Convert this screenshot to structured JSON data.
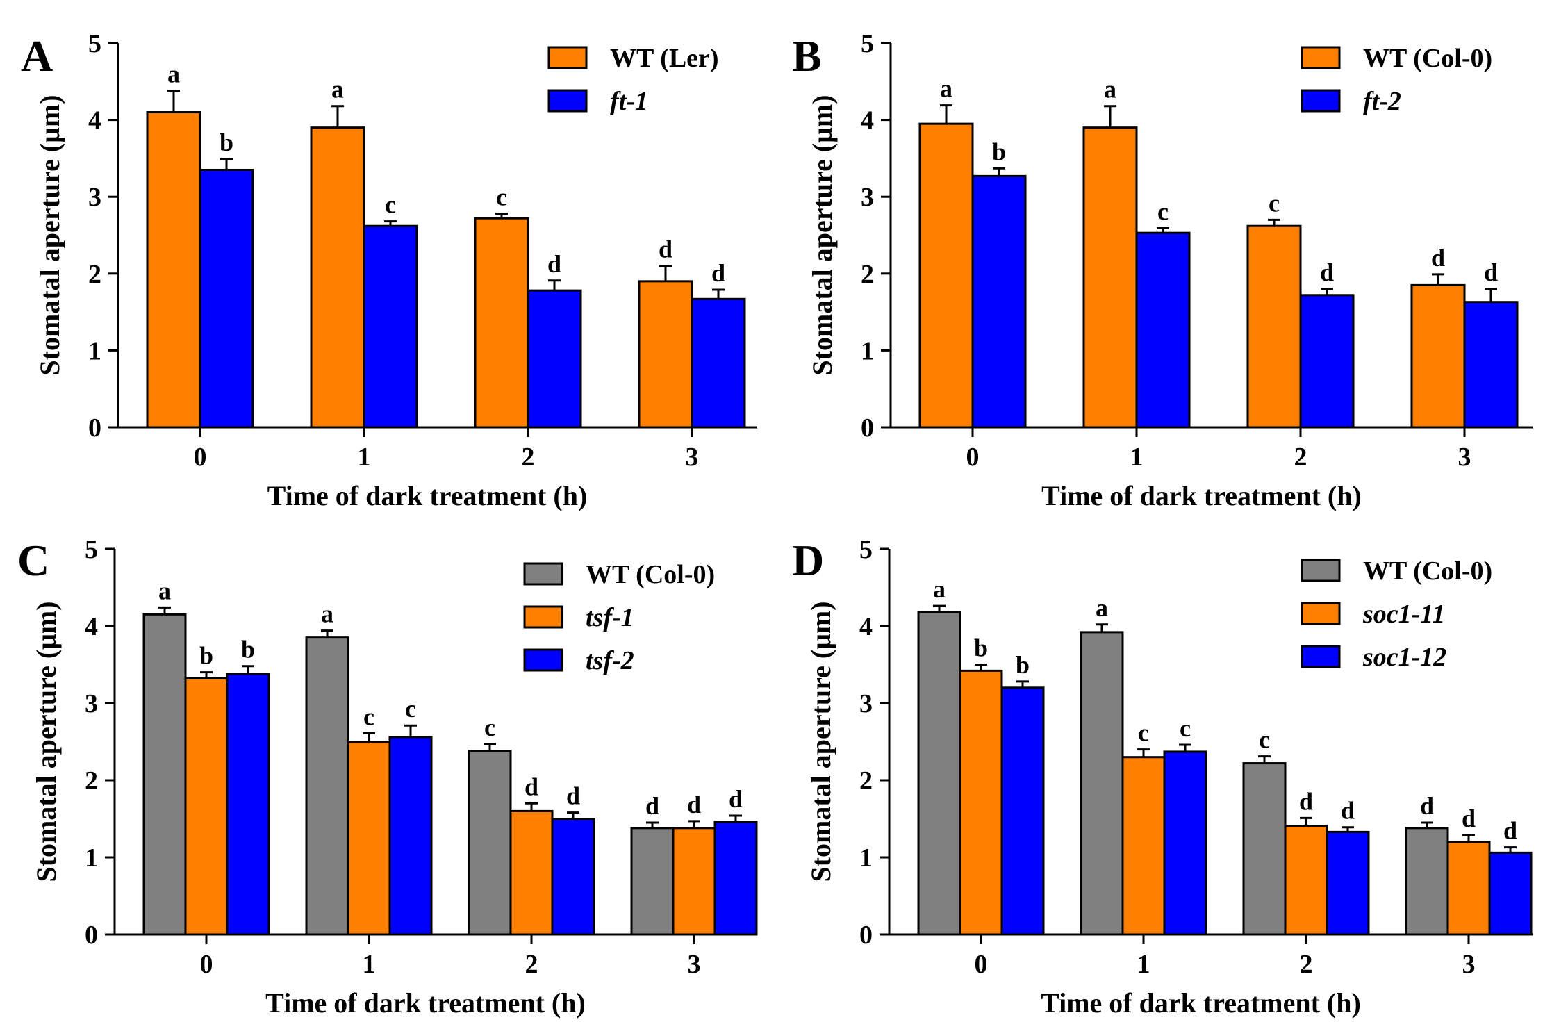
{
  "chart_data": [
    {
      "type": "bar",
      "panel": "A",
      "xlabel": "Time of dark treatment (h)",
      "ylabel": "Stomatal aperture (μm)",
      "ylim": [
        0,
        5
      ],
      "yticks": [
        "0",
        "1",
        "2",
        "3",
        "4",
        "5"
      ],
      "categories": [
        "0",
        "1",
        "2",
        "3"
      ],
      "legend_position": "top-right",
      "series": [
        {
          "name": "WT (Ler)",
          "italic": false,
          "color": "#ff7f00",
          "values": [
            4.1,
            3.9,
            2.72,
            1.9
          ],
          "errors": [
            0.28,
            0.28,
            0.06,
            0.2
          ],
          "sig": [
            "a",
            "a",
            "c",
            "d"
          ]
        },
        {
          "name": "ft-1",
          "italic": true,
          "color": "#0000ff",
          "values": [
            3.35,
            2.62,
            1.78,
            1.67
          ],
          "errors": [
            0.14,
            0.06,
            0.13,
            0.12
          ],
          "sig": [
            "b",
            "c",
            "d",
            "d"
          ]
        }
      ]
    },
    {
      "type": "bar",
      "panel": "B",
      "xlabel": "Time of dark treatment (h)",
      "ylabel": "Stomatal aperture (μm)",
      "ylim": [
        0,
        5
      ],
      "yticks": [
        "0",
        "1",
        "2",
        "3",
        "4",
        "5"
      ],
      "categories": [
        "0",
        "1",
        "2",
        "3"
      ],
      "legend_position": "top-right",
      "series": [
        {
          "name": "WT (Col-0)",
          "italic": false,
          "color": "#ff7f00",
          "values": [
            3.95,
            3.9,
            2.62,
            1.85
          ],
          "errors": [
            0.24,
            0.28,
            0.08,
            0.14
          ],
          "sig": [
            "a",
            "a",
            "c",
            "d"
          ]
        },
        {
          "name": "ft-2",
          "italic": true,
          "color": "#0000ff",
          "values": [
            3.27,
            2.53,
            1.72,
            1.63
          ],
          "errors": [
            0.1,
            0.06,
            0.08,
            0.17
          ],
          "sig": [
            "b",
            "c",
            "d",
            "d"
          ]
        }
      ]
    },
    {
      "type": "bar",
      "panel": "C",
      "xlabel": "Time of dark treatment (h)",
      "ylabel": "Stomatal aperture (μm)",
      "ylim": [
        0,
        5
      ],
      "yticks": [
        "0",
        "1",
        "2",
        "3",
        "4",
        "5"
      ],
      "categories": [
        "0",
        "1",
        "2",
        "3"
      ],
      "legend_position": "top-right",
      "series": [
        {
          "name": "WT (Col-0)",
          "italic": false,
          "color": "#808080",
          "values": [
            4.15,
            3.85,
            2.38,
            1.38
          ],
          "errors": [
            0.09,
            0.09,
            0.09,
            0.07
          ],
          "sig": [
            "a",
            "a",
            "c",
            "d"
          ]
        },
        {
          "name": "tsf-1",
          "italic": true,
          "color": "#ff7f00",
          "values": [
            3.32,
            2.5,
            1.6,
            1.38
          ],
          "errors": [
            0.08,
            0.11,
            0.1,
            0.09
          ],
          "sig": [
            "b",
            "c",
            "d",
            "d"
          ]
        },
        {
          "name": "tsf-2",
          "italic": true,
          "color": "#0000ff",
          "values": [
            3.38,
            2.56,
            1.5,
            1.46
          ],
          "errors": [
            0.1,
            0.15,
            0.08,
            0.08
          ],
          "sig": [
            "b",
            "c",
            "d",
            "d"
          ]
        }
      ]
    },
    {
      "type": "bar",
      "panel": "D",
      "xlabel": "Time of dark treatment (h)",
      "ylabel": "Stomatal aperture (μm)",
      "ylim": [
        0,
        5
      ],
      "yticks": [
        "0",
        "1",
        "2",
        "3",
        "4",
        "5"
      ],
      "categories": [
        "0",
        "1",
        "2",
        "3"
      ],
      "legend_position": "top-right",
      "series": [
        {
          "name": "WT (Col-0)",
          "italic": false,
          "color": "#808080",
          "values": [
            4.18,
            3.92,
            2.22,
            1.38
          ],
          "errors": [
            0.08,
            0.1,
            0.09,
            0.07
          ],
          "sig": [
            "a",
            "a",
            "c",
            "d"
          ]
        },
        {
          "name": "soc1-11",
          "italic": true,
          "color": "#ff7f00",
          "values": [
            3.42,
            2.3,
            1.41,
            1.2
          ],
          "errors": [
            0.08,
            0.1,
            0.1,
            0.09
          ],
          "sig": [
            "b",
            "c",
            "d",
            "d"
          ]
        },
        {
          "name": "soc1-12",
          "italic": true,
          "color": "#0000ff",
          "values": [
            3.2,
            2.37,
            1.33,
            1.06
          ],
          "errors": [
            0.08,
            0.09,
            0.06,
            0.07
          ],
          "sig": [
            "b",
            "c",
            "d",
            "d"
          ]
        }
      ]
    }
  ]
}
